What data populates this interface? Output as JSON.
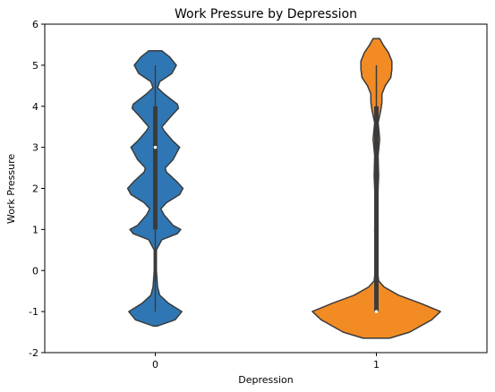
{
  "chart_data": {
    "type": "violin",
    "title": "Work Pressure by Depression",
    "xlabel": "Depression",
    "ylabel": "Work Pressure",
    "categories": [
      "0",
      "1"
    ],
    "ylim": [
      -2,
      6
    ],
    "yticks": [
      "-2",
      "-1",
      "0",
      "1",
      "2",
      "3",
      "4",
      "5",
      "6"
    ],
    "grid": false,
    "series": [
      {
        "category": "0",
        "color": "#2f77b4",
        "density_profile": [
          [
            -1.35,
            0.02
          ],
          [
            -1.2,
            0.18
          ],
          [
            -1.0,
            0.24
          ],
          [
            -0.8,
            0.12
          ],
          [
            -0.6,
            0.04
          ],
          [
            -0.4,
            0.02
          ],
          [
            0.0,
            0.01
          ],
          [
            0.5,
            0.01
          ],
          [
            0.75,
            0.06
          ],
          [
            0.9,
            0.2
          ],
          [
            1.0,
            0.23
          ],
          [
            1.1,
            0.16
          ],
          [
            1.35,
            0.08
          ],
          [
            1.5,
            0.05
          ],
          [
            1.65,
            0.1
          ],
          [
            1.85,
            0.22
          ],
          [
            2.0,
            0.25
          ],
          [
            2.15,
            0.2
          ],
          [
            2.4,
            0.1
          ],
          [
            2.5,
            0.09
          ],
          [
            2.7,
            0.16
          ],
          [
            2.9,
            0.2
          ],
          [
            3.0,
            0.22
          ],
          [
            3.15,
            0.16
          ],
          [
            3.4,
            0.08
          ],
          [
            3.5,
            0.06
          ],
          [
            3.75,
            0.14
          ],
          [
            3.95,
            0.21
          ],
          [
            4.05,
            0.2
          ],
          [
            4.3,
            0.08
          ],
          [
            4.45,
            0.02
          ],
          [
            4.6,
            0.04
          ],
          [
            4.8,
            0.15
          ],
          [
            5.0,
            0.19
          ],
          [
            5.2,
            0.13
          ],
          [
            5.35,
            0.06
          ]
        ],
        "median": 3,
        "q1": 1,
        "q3": 4,
        "whisker_low": -1,
        "whisker_high": 5
      },
      {
        "category": "1",
        "color": "#f28b24",
        "density_profile": [
          [
            -1.65,
            0.12
          ],
          [
            -1.5,
            0.3
          ],
          [
            -1.2,
            0.5
          ],
          [
            -1.0,
            0.58
          ],
          [
            -0.8,
            0.4
          ],
          [
            -0.6,
            0.2
          ],
          [
            -0.4,
            0.07
          ],
          [
            -0.25,
            0.02
          ],
          [
            0.0,
            0.01
          ],
          [
            0.5,
            0.01
          ],
          [
            1.0,
            0.015
          ],
          [
            1.5,
            0.01
          ],
          [
            2.0,
            0.015
          ],
          [
            2.3,
            0.02
          ],
          [
            2.8,
            0.015
          ],
          [
            3.2,
            0.03
          ],
          [
            3.6,
            0.015
          ],
          [
            3.9,
            0.04
          ],
          [
            4.1,
            0.05
          ],
          [
            4.3,
            0.05
          ],
          [
            4.5,
            0.08
          ],
          [
            4.7,
            0.13
          ],
          [
            4.9,
            0.14
          ],
          [
            5.1,
            0.14
          ],
          [
            5.3,
            0.11
          ],
          [
            5.5,
            0.06
          ],
          [
            5.65,
            0.03
          ]
        ],
        "median": -1,
        "q1": -1,
        "q3": 4,
        "whisker_low": -1,
        "whisker_high": 5
      }
    ]
  }
}
